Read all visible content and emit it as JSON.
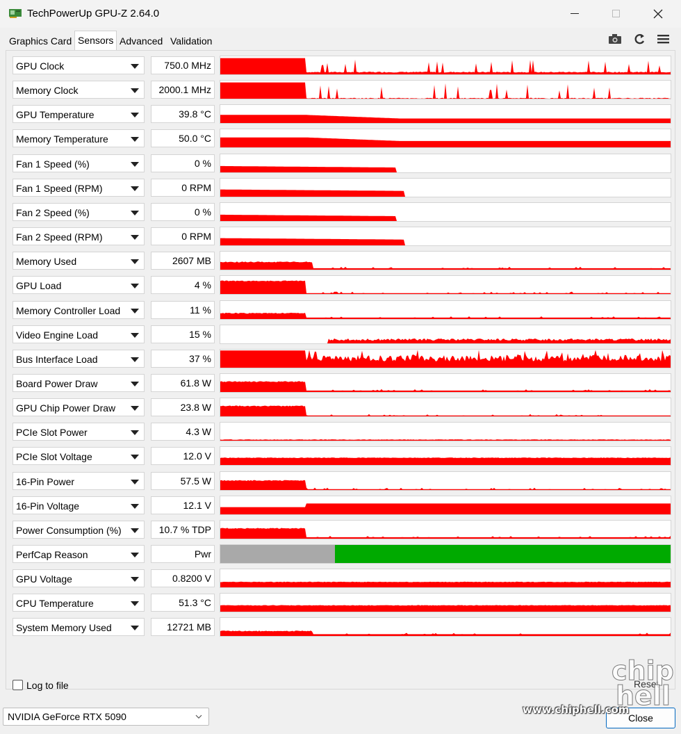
{
  "window": {
    "title": "TechPowerUp GPU-Z 2.64.0"
  },
  "tabs": [
    "Graphics Card",
    "Sensors",
    "Advanced",
    "Validation"
  ],
  "active_tab": "Sensors",
  "sensors": [
    {
      "label": "GPU Clock",
      "value": "750.0 MHz",
      "pattern": "spiky",
      "hi": 0.9,
      "lo": 0.1
    },
    {
      "label": "Memory Clock",
      "value": "2000.1 MHz",
      "pattern": "spiky",
      "hi": 0.9,
      "lo": 0.0
    },
    {
      "label": "GPU Temperature",
      "value": "39.8 °C",
      "pattern": "decline",
      "hi": 0.45,
      "lo": 0.25
    },
    {
      "label": "Memory Temperature",
      "value": "50.0 °C",
      "pattern": "decline",
      "hi": 0.55,
      "lo": 0.35
    },
    {
      "label": "Fan 1 Speed (%)",
      "value": "0 %",
      "pattern": "stop",
      "hi": 0.35,
      "lo": 0.0,
      "end": 0.39
    },
    {
      "label": "Fan 1 Speed (RPM)",
      "value": "0 RPM",
      "pattern": "stop",
      "hi": 0.4,
      "lo": 0.0,
      "end": 0.41
    },
    {
      "label": "Fan 2 Speed (%)",
      "value": "0 %",
      "pattern": "stop",
      "hi": 0.35,
      "lo": 0.0,
      "end": 0.39
    },
    {
      "label": "Fan 2 Speed (RPM)",
      "value": "0 RPM",
      "pattern": "stop",
      "hi": 0.4,
      "lo": 0.0,
      "end": 0.41
    },
    {
      "label": "Memory Used",
      "value": "2607 MB",
      "pattern": "step",
      "hi": 0.45,
      "lo": 0.08,
      "at": 0.205
    },
    {
      "label": "GPU Load",
      "value": "4 %",
      "pattern": "step",
      "hi": 0.75,
      "lo": 0.05,
      "at": 0.19
    },
    {
      "label": "Memory Controller Load",
      "value": "11 %",
      "pattern": "step",
      "hi": 0.35,
      "lo": 0.08,
      "at": 0.19
    },
    {
      "label": "Video Engine Load",
      "value": "15 %",
      "pattern": "late",
      "hi": 0.15,
      "lo": 0.0,
      "at": 0.24
    },
    {
      "label": "Bus Interface Load",
      "value": "37 %",
      "pattern": "noisy",
      "hi": 0.95,
      "lo": 0.35
    },
    {
      "label": "Board Power Draw",
      "value": "61.8 W",
      "pattern": "step",
      "hi": 0.6,
      "lo": 0.08,
      "at": 0.19
    },
    {
      "label": "GPU Chip Power Draw",
      "value": "23.8 W",
      "pattern": "step",
      "hi": 0.6,
      "lo": 0.05,
      "at": 0.19
    },
    {
      "label": "PCIe Slot Power",
      "value": "4.3 W",
      "pattern": "flat",
      "hi": 0.06,
      "lo": 0.06
    },
    {
      "label": "PCIe Slot Voltage",
      "value": "12.0 V",
      "pattern": "flat",
      "hi": 0.4,
      "lo": 0.4
    },
    {
      "label": "16-Pin Power",
      "value": "57.5 W",
      "pattern": "step",
      "hi": 0.55,
      "lo": 0.05,
      "at": 0.19
    },
    {
      "label": "16-Pin Voltage",
      "value": "12.1 V",
      "pattern": "rise",
      "hi": 0.6,
      "lo": 0.4,
      "at": 0.19
    },
    {
      "label": "Power Consumption (%)",
      "value": "10.7 % TDP",
      "pattern": "step",
      "hi": 0.6,
      "lo": 0.08,
      "at": 0.19
    },
    {
      "label": "PerfCap Reason",
      "value": "Pwr",
      "pattern": "perfcap",
      "split": 0.255
    },
    {
      "label": "GPU Voltage",
      "value": "0.8200 V",
      "pattern": "flat",
      "hi": 0.3,
      "lo": 0.3
    },
    {
      "label": "CPU Temperature",
      "value": "51.3 °C",
      "pattern": "flat",
      "hi": 0.35,
      "lo": 0.3
    },
    {
      "label": "System Memory Used",
      "value": "12721 MB",
      "pattern": "step",
      "hi": 0.3,
      "lo": 0.1,
      "at": 0.205
    }
  ],
  "colors": {
    "graph": "#ff0000",
    "perfcap_idle": "#a9a9a9",
    "perfcap_pwr": "#00aa00"
  },
  "footer": {
    "log_label": "Log to file",
    "reset_label": "Reset",
    "gpu_name": "NVIDIA GeForce RTX 5090",
    "close_label": "Close",
    "watermark_url": "www.chiphell.com",
    "watermark_logo": "chip hell"
  }
}
